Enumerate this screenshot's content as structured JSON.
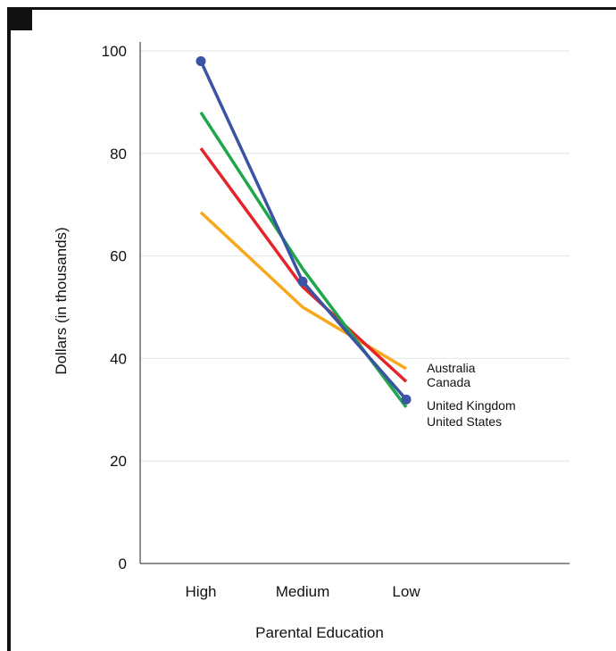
{
  "chart_data": {
    "type": "line",
    "categories": [
      "High",
      "Medium",
      "Low"
    ],
    "xlabel": "Parental Education",
    "ylabel": "Dollars (in thousands)",
    "ylim": [
      0,
      100
    ],
    "yticks": [
      0,
      20,
      40,
      60,
      80,
      100
    ],
    "grid": true,
    "legend_placement": "right, at line ends",
    "series": [
      {
        "name": "Australia",
        "color": "#f7a91e",
        "values": [
          68.5,
          50,
          38
        ]
      },
      {
        "name": "Canada",
        "color": "#e3242b",
        "values": [
          81,
          54,
          35.5
        ]
      },
      {
        "name": "United Kingdom",
        "color": "#1fa64a",
        "values": [
          88,
          57.5,
          30.5
        ]
      },
      {
        "name": "United States",
        "color": "#3a53a4",
        "values": [
          98,
          55,
          32
        ],
        "markers": true
      }
    ]
  }
}
